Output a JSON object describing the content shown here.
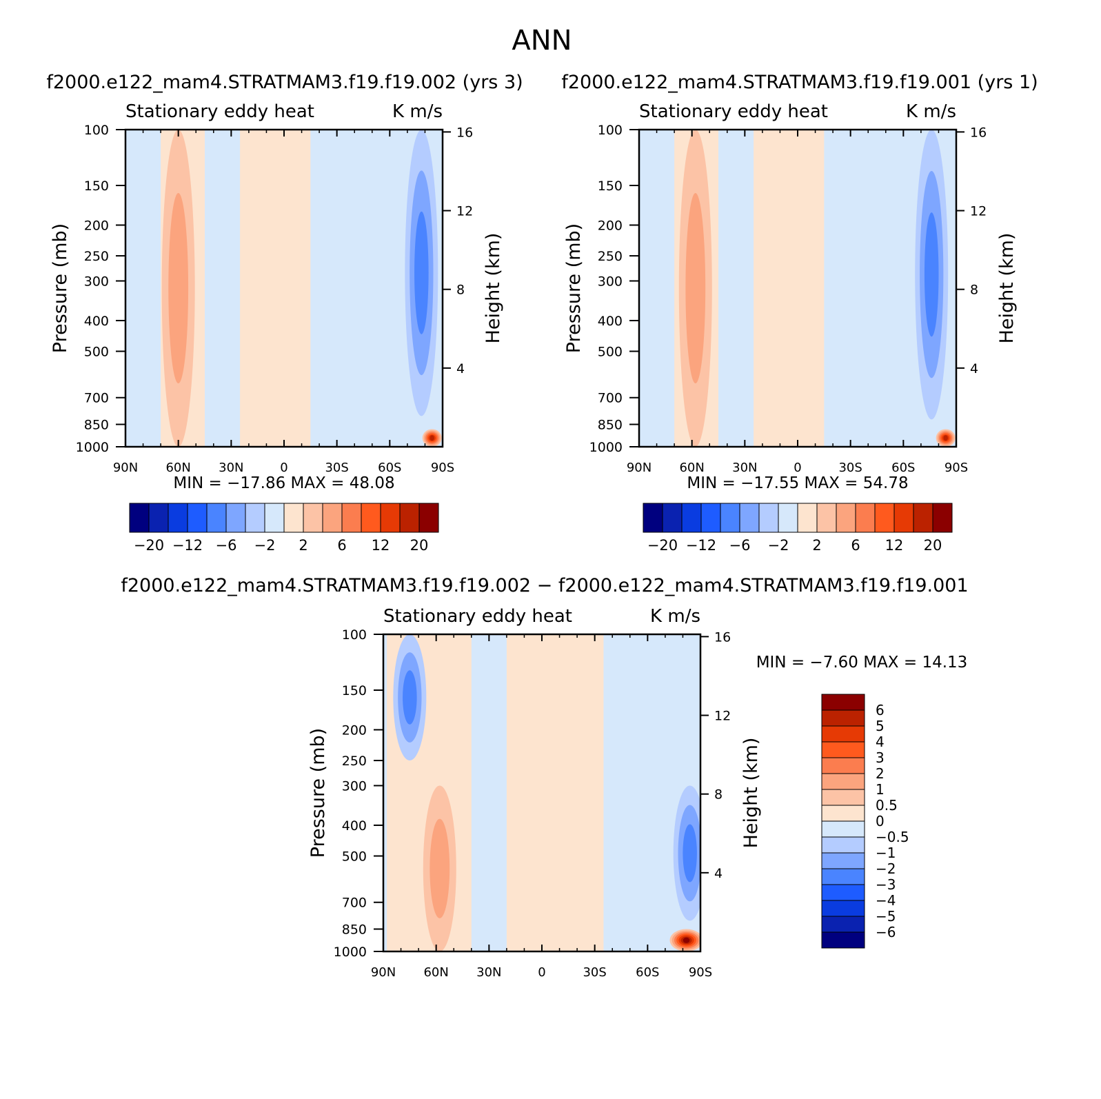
{
  "figure": {
    "title": "ANN",
    "panel_top_left_title": "f2000.e122_mam4.STRATMAM3.f19.f19.002 (yrs 3)",
    "panel_top_right_title": "f2000.e122_mam4.STRATMAM3.f19.f19.001 (yrs 1)",
    "panel_bottom_title": "f2000.e122_mam4.STRATMAM3.f19.f19.002 − f2000.e122_mam4.STRATMAM3.f19.f19.001"
  },
  "colors": {
    "contour_levels_main": [
      "#00007f",
      "#0a22b0",
      "#0a3ce0",
      "#1e5cff",
      "#4a84ff",
      "#7ea6ff",
      "#b4ccff",
      "#d6e8fb",
      "#fde4cf",
      "#fcc3a6",
      "#fba47e",
      "#fb7d4f",
      "#ff5a1e",
      "#e63a05",
      "#bb2200",
      "#8b0000"
    ],
    "contour_levels_diff": [
      "#00007f",
      "#0a22b0",
      "#0a3ce0",
      "#1e5cff",
      "#4a84ff",
      "#7ea6ff",
      "#b4ccff",
      "#d6e8fb",
      "#fde4cf",
      "#fcc3a6",
      "#fba47e",
      "#fb7d4f",
      "#ff5a1e",
      "#e63a05",
      "#bb2200",
      "#8b0000"
    ]
  },
  "chart_data": [
    {
      "type": "heatmap",
      "title": "Stationary eddy heat",
      "units": "K m/s",
      "xlabel": "",
      "ylabel": "Pressure (mb)",
      "ylabel_right": "Height (km)",
      "x_ticks": [
        "90N",
        "60N",
        "30N",
        "0",
        "30S",
        "60S",
        "90S"
      ],
      "y_ticks": [
        100,
        150,
        200,
        250,
        300,
        400,
        500,
        700,
        850,
        1000
      ],
      "y_ticks_right": [
        16,
        12,
        8,
        4
      ],
      "x_range": [
        "90N",
        "90S"
      ],
      "y_range": [
        1000,
        100
      ],
      "y_scale": "log",
      "min_label": "MIN =",
      "min": "−17.86",
      "max_label": "MAX =",
      "max": "48.08",
      "colorbar_labels": [
        "−20",
        "−12",
        "−6",
        "−2",
        "2",
        "6",
        "12",
        "20"
      ],
      "features": [
        {
          "lat": 60,
          "p_top": 100,
          "p_bottom": 1000,
          "sign": "positive",
          "peak_level": 6
        },
        {
          "lat": -78,
          "p_top": 100,
          "p_bottom": 800,
          "sign": "negative",
          "peak_level": -6
        },
        {
          "lat": -84,
          "p_top": 880,
          "p_bottom": 1000,
          "sign": "positive",
          "peak_level": 20
        }
      ]
    },
    {
      "type": "heatmap",
      "title": "Stationary eddy heat",
      "units": "K m/s",
      "xlabel": "",
      "ylabel": "Pressure (mb)",
      "ylabel_right": "Height (km)",
      "x_ticks": [
        "90N",
        "60N",
        "30N",
        "0",
        "30S",
        "60S",
        "90S"
      ],
      "y_ticks": [
        100,
        150,
        200,
        250,
        300,
        400,
        500,
        700,
        850,
        1000
      ],
      "y_ticks_right": [
        16,
        12,
        8,
        4
      ],
      "x_range": [
        "90N",
        "90S"
      ],
      "y_range": [
        1000,
        100
      ],
      "y_scale": "log",
      "min_label": "MIN =",
      "min": "−17.55",
      "max_label": "MAX =",
      "max": "54.78",
      "colorbar_labels": [
        "−20",
        "−12",
        "−6",
        "−2",
        "2",
        "6",
        "12",
        "20"
      ],
      "features": [
        {
          "lat": 58,
          "p_top": 100,
          "p_bottom": 1000,
          "sign": "positive",
          "peak_level": 6
        },
        {
          "lat": -76,
          "p_top": 100,
          "p_bottom": 820,
          "sign": "negative",
          "peak_level": -6
        },
        {
          "lat": -84,
          "p_top": 880,
          "p_bottom": 1000,
          "sign": "positive",
          "peak_level": 20
        }
      ]
    },
    {
      "type": "heatmap",
      "title": "Stationary eddy heat",
      "units": "K m/s",
      "xlabel": "",
      "ylabel": "Pressure (mb)",
      "ylabel_right": "Height (km)",
      "x_ticks": [
        "90N",
        "60N",
        "30N",
        "0",
        "30S",
        "60S",
        "90S"
      ],
      "y_ticks": [
        100,
        150,
        200,
        250,
        300,
        400,
        500,
        700,
        850,
        1000
      ],
      "y_ticks_right": [
        16,
        12,
        8,
        4
      ],
      "x_range": [
        "90N",
        "90S"
      ],
      "y_range": [
        1000,
        100
      ],
      "y_scale": "log",
      "min_label": "MIN =",
      "min": "−7.60",
      "max_label": "MAX =",
      "max": "14.13",
      "colorbar_labels": [
        "6",
        "5",
        "4",
        "3",
        "2",
        "1",
        "0.5",
        "0",
        "−0.5",
        "−1",
        "−2",
        "−3",
        "−4",
        "−5",
        "−6"
      ],
      "features": [
        {
          "lat": 75,
          "p_top": 100,
          "p_bottom": 250,
          "sign": "negative",
          "peak_level": -4
        },
        {
          "lat": 58,
          "p_top": 300,
          "p_bottom": 1000,
          "sign": "positive",
          "peak_level": 2
        },
        {
          "lat": -84,
          "p_top": 300,
          "p_bottom": 800,
          "sign": "negative",
          "peak_level": -4
        },
        {
          "lat": -82,
          "p_top": 850,
          "p_bottom": 1000,
          "sign": "positive",
          "peak_level": 6
        }
      ]
    }
  ]
}
